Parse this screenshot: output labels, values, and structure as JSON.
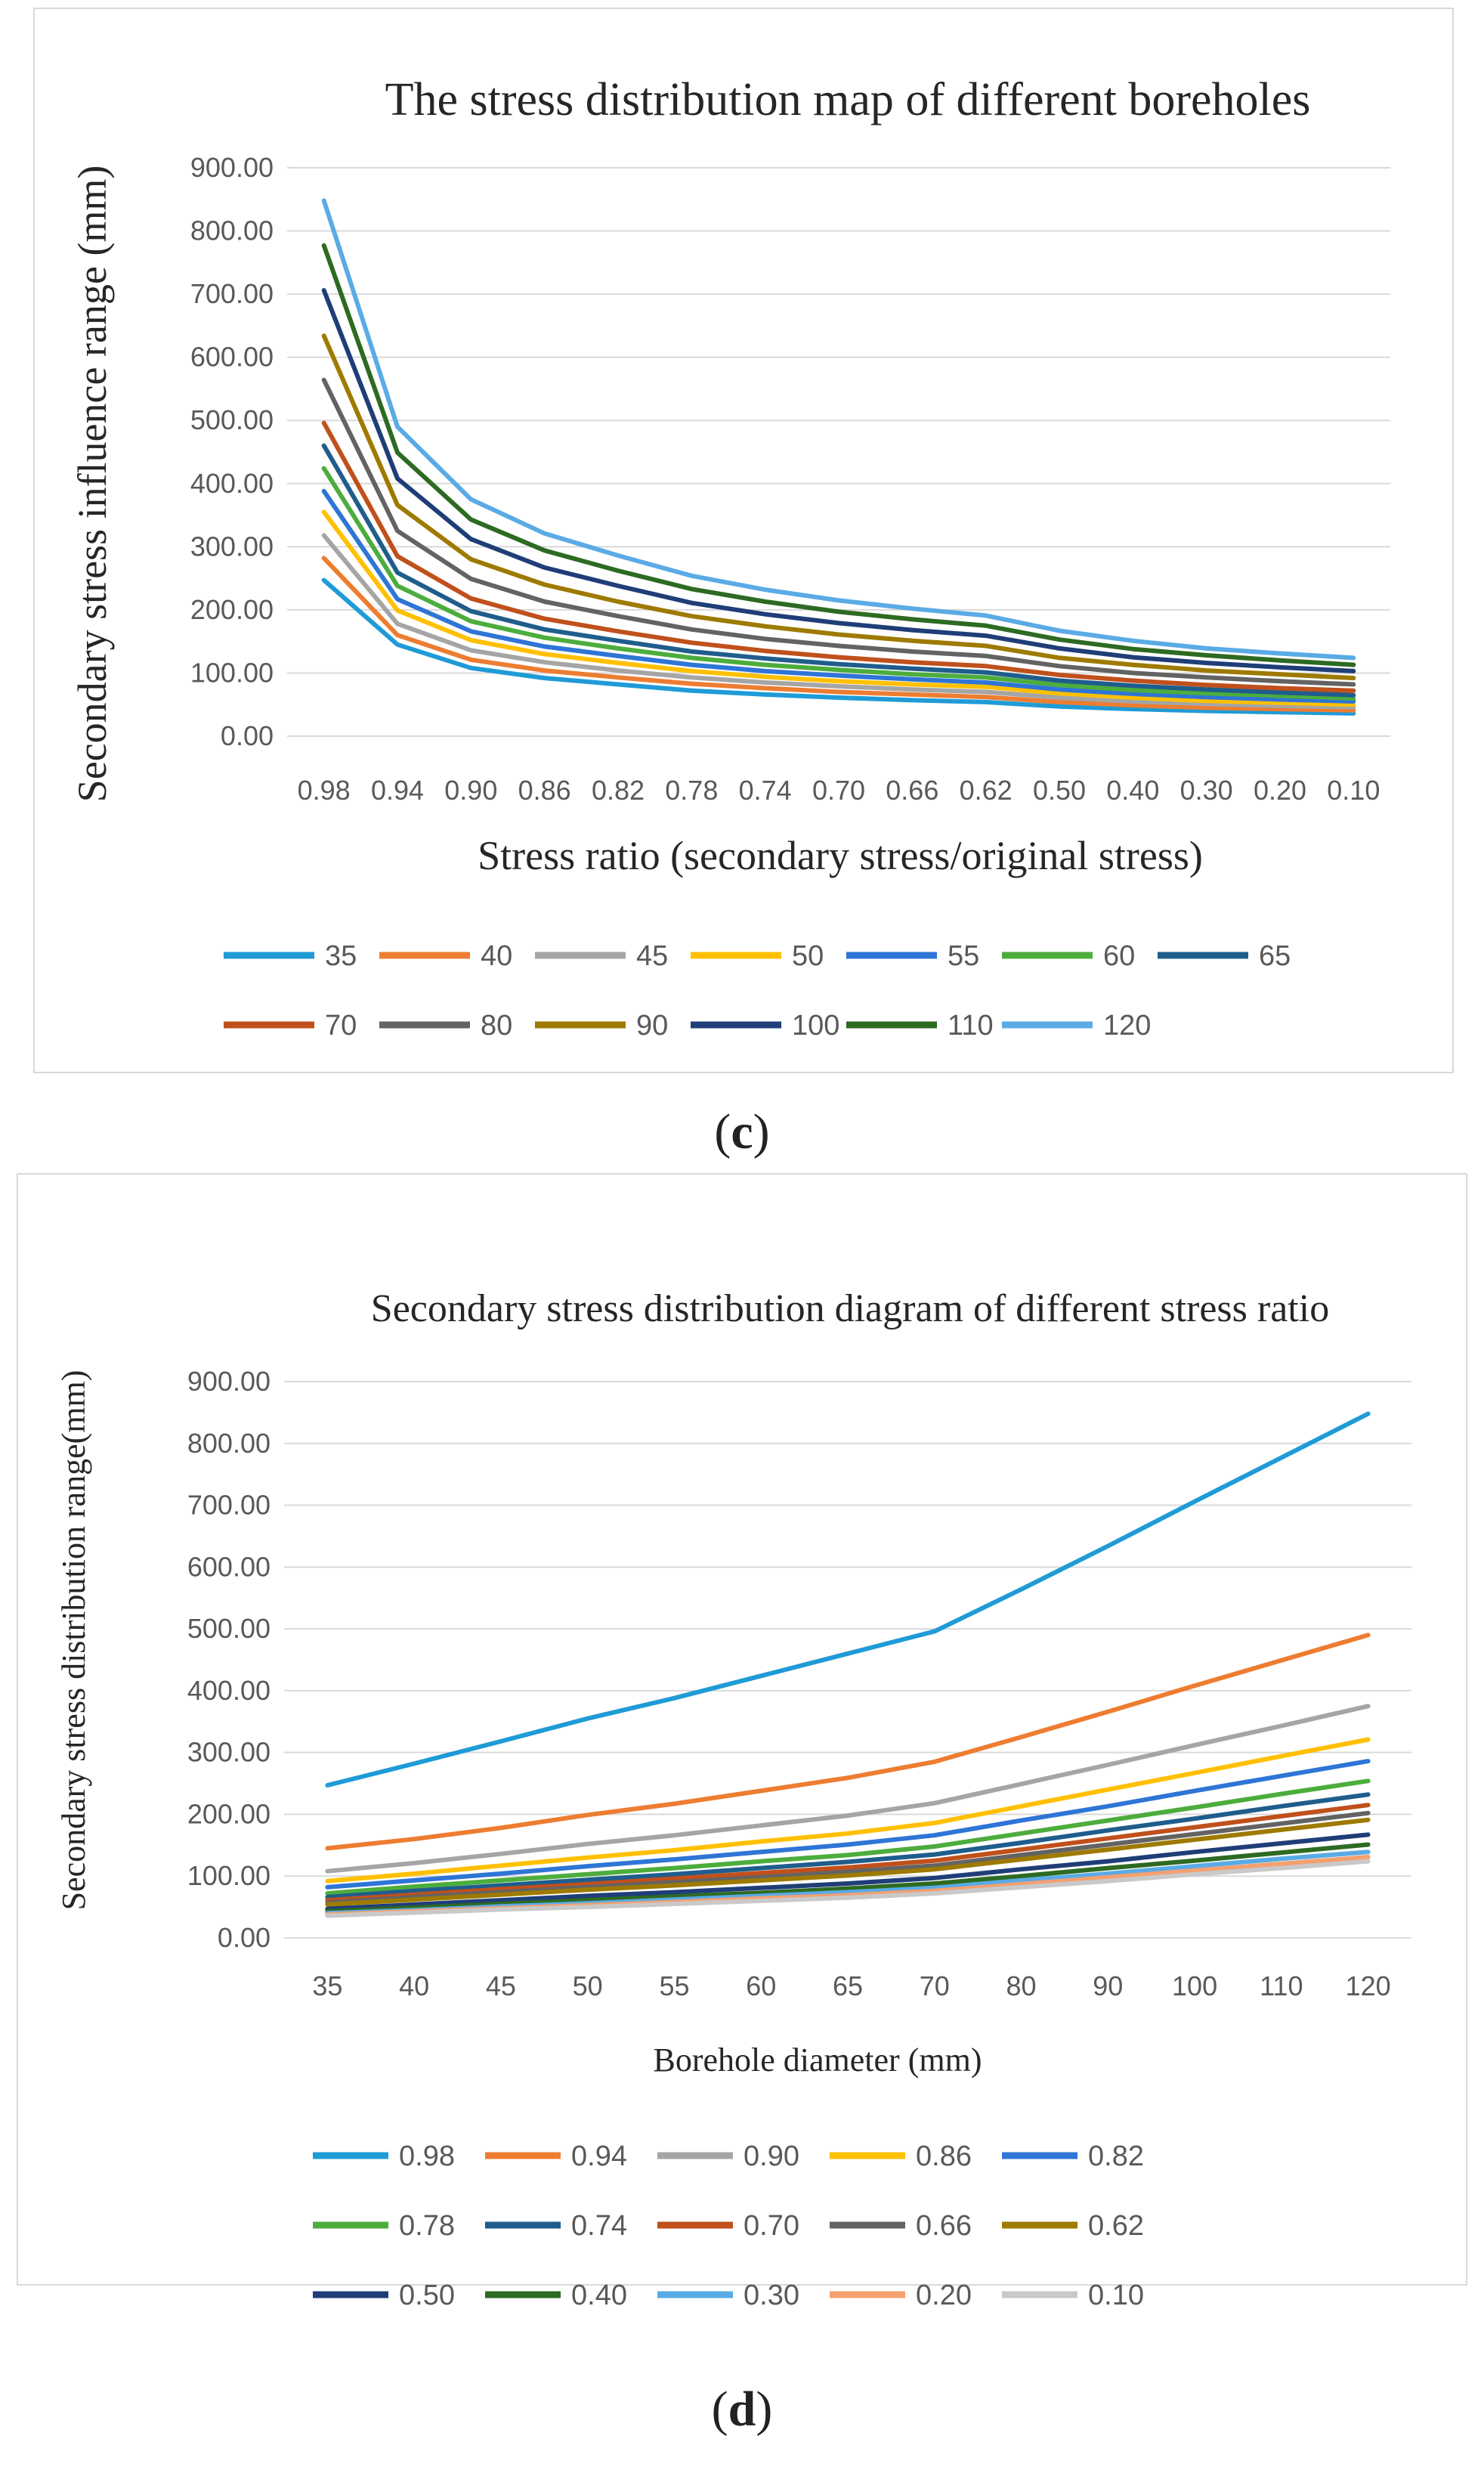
{
  "chart_data": [
    {
      "type": "line",
      "title": "The stress distribution map of different boreholes",
      "xlabel": "Stress ratio (secondary stress/original stress)",
      "ylabel": "Secondary stress influence range (mm)",
      "ylim": [
        0,
        900
      ],
      "yticks": [
        "0.00",
        "100.00",
        "200.00",
        "300.00",
        "400.00",
        "500.00",
        "600.00",
        "700.00",
        "800.00",
        "900.00"
      ],
      "categories": [
        "0.98",
        "0.94",
        "0.90",
        "0.86",
        "0.82",
        "0.78",
        "0.74",
        "0.70",
        "0.66",
        "0.62",
        "0.50",
        "0.40",
        "0.30",
        "0.20",
        "0.10"
      ],
      "grid": true,
      "legend": "bottom",
      "series": [
        {
          "name": "35",
          "color": "#1f9bd7",
          "values": [
            247,
            145,
            108,
            92,
            82,
            72,
            66,
            61,
            57,
            54,
            47,
            43,
            40,
            38,
            36
          ]
        },
        {
          "name": "40",
          "color": "#ed7d31",
          "values": [
            282,
            160,
            121,
            104,
            93,
            83,
            76,
            70,
            66,
            62,
            54,
            49,
            45,
            43,
            41
          ]
        },
        {
          "name": "45",
          "color": "#a5a5a5",
          "values": [
            318,
            178,
            136,
            117,
            104,
            93,
            85,
            79,
            74,
            70,
            61,
            55,
            51,
            48,
            46
          ]
        },
        {
          "name": "50",
          "color": "#ffc000",
          "values": [
            355,
            199,
            152,
            130,
            116,
            103,
            94,
            87,
            82,
            78,
            68,
            61,
            56,
            53,
            50
          ]
        },
        {
          "name": "55",
          "color": "#2e75d6",
          "values": [
            388,
            217,
            166,
            142,
            127,
            113,
            103,
            96,
            90,
            85,
            74,
            67,
            62,
            58,
            55
          ]
        },
        {
          "name": "60",
          "color": "#4cad3d",
          "values": [
            424,
            238,
            182,
            156,
            139,
            124,
            113,
            105,
            98,
            93,
            81,
            73,
            68,
            64,
            60
          ]
        },
        {
          "name": "65",
          "color": "#1f5d8c",
          "values": [
            460,
            259,
            198,
            169,
            151,
            134,
            123,
            114,
            107,
            101,
            88,
            80,
            74,
            69,
            65
          ]
        },
        {
          "name": "70",
          "color": "#c0501c",
          "values": [
            496,
            285,
            218,
            186,
            166,
            148,
            135,
            125,
            117,
            111,
            97,
            88,
            81,
            76,
            72
          ]
        },
        {
          "name": "80",
          "color": "#636363",
          "values": [
            564,
            325,
            249,
            213,
            190,
            169,
            154,
            143,
            134,
            127,
            111,
            100,
            93,
            87,
            82
          ]
        },
        {
          "name": "90",
          "color": "#9e7a00",
          "values": [
            634,
            366,
            280,
            240,
            213,
            190,
            174,
            161,
            151,
            143,
            124,
            113,
            104,
            98,
            92
          ]
        },
        {
          "name": "100",
          "color": "#1f3e78",
          "values": [
            706,
            408,
            312,
            267,
            238,
            211,
            193,
            179,
            168,
            159,
            139,
            125,
            116,
            109,
            103
          ]
        },
        {
          "name": "110",
          "color": "#2d6a22",
          "values": [
            777,
            449,
            343,
            294,
            262,
            233,
            213,
            197,
            185,
            175,
            153,
            138,
            128,
            120,
            113
          ]
        },
        {
          "name": "120",
          "color": "#5aabe5",
          "values": [
            848,
            490,
            375,
            321,
            286,
            254,
            232,
            215,
            202,
            191,
            167,
            151,
            139,
            131,
            124
          ]
        }
      ]
    },
    {
      "type": "line",
      "title": "Secondary stress distribution diagram of different stress ratio",
      "xlabel": "Borehole diameter (mm)",
      "ylabel": "Secondary stress distribution range(mm)",
      "ylim": [
        0,
        900
      ],
      "yticks": [
        "0.00",
        "100.00",
        "200.00",
        "300.00",
        "400.00",
        "500.00",
        "600.00",
        "700.00",
        "800.00",
        "900.00"
      ],
      "categories": [
        "35",
        "40",
        "45",
        "50",
        "55",
        "60",
        "65",
        "70",
        "80",
        "90",
        "100",
        "110",
        "120"
      ],
      "grid": true,
      "legend": "bottom",
      "series": [
        {
          "name": "0.98",
          "color": "#1f9bd7",
          "values": [
            247,
            282,
            318,
            355,
            388,
            424,
            460,
            496,
            564,
            634,
            706,
            777,
            848
          ]
        },
        {
          "name": "0.94",
          "color": "#ed7d31",
          "values": [
            145,
            160,
            178,
            199,
            217,
            238,
            259,
            285,
            325,
            366,
            408,
            449,
            490
          ]
        },
        {
          "name": "0.90",
          "color": "#a5a5a5",
          "values": [
            108,
            121,
            136,
            152,
            166,
            182,
            198,
            218,
            249,
            280,
            312,
            343,
            375
          ]
        },
        {
          "name": "0.86",
          "color": "#ffc000",
          "values": [
            92,
            104,
            117,
            130,
            142,
            156,
            169,
            186,
            213,
            240,
            267,
            294,
            321
          ]
        },
        {
          "name": "0.82",
          "color": "#2e75d6",
          "values": [
            82,
            93,
            104,
            116,
            127,
            139,
            151,
            166,
            190,
            213,
            238,
            262,
            286
          ]
        },
        {
          "name": "0.78",
          "color": "#4cad3d",
          "values": [
            72,
            83,
            93,
            103,
            113,
            124,
            134,
            148,
            169,
            190,
            211,
            233,
            254
          ]
        },
        {
          "name": "0.74",
          "color": "#1f5d8c",
          "values": [
            66,
            76,
            85,
            94,
            103,
            113,
            123,
            135,
            154,
            174,
            193,
            213,
            232
          ]
        },
        {
          "name": "0.70",
          "color": "#c0501c",
          "values": [
            61,
            70,
            79,
            87,
            96,
            105,
            114,
            125,
            143,
            161,
            179,
            197,
            215
          ]
        },
        {
          "name": "0.66",
          "color": "#636363",
          "values": [
            57,
            66,
            74,
            82,
            90,
            98,
            107,
            117,
            134,
            151,
            168,
            185,
            202
          ]
        },
        {
          "name": "0.62",
          "color": "#9e7a00",
          "values": [
            54,
            62,
            70,
            78,
            85,
            93,
            101,
            111,
            127,
            143,
            159,
            175,
            191
          ]
        },
        {
          "name": "0.50",
          "color": "#1f3e78",
          "values": [
            47,
            54,
            61,
            68,
            74,
            81,
            88,
            97,
            111,
            124,
            139,
            153,
            167
          ]
        },
        {
          "name": "0.40",
          "color": "#2d6a22",
          "values": [
            43,
            49,
            55,
            61,
            67,
            73,
            80,
            88,
            100,
            113,
            125,
            138,
            151
          ]
        },
        {
          "name": "0.30",
          "color": "#5aabe5",
          "values": [
            40,
            45,
            51,
            56,
            62,
            68,
            74,
            81,
            93,
            104,
            116,
            128,
            139
          ]
        },
        {
          "name": "0.20",
          "color": "#f4a070",
          "values": [
            38,
            43,
            48,
            53,
            58,
            64,
            69,
            76,
            87,
            98,
            109,
            120,
            131
          ]
        },
        {
          "name": "0.10",
          "color": "#c9c9c9",
          "values": [
            36,
            41,
            46,
            50,
            55,
            60,
            65,
            72,
            82,
            92,
            103,
            113,
            124
          ]
        }
      ]
    }
  ],
  "captions": {
    "c": "c",
    "d": "d"
  }
}
